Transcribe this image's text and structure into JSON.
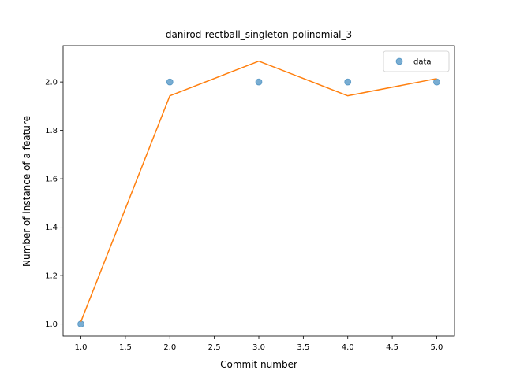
{
  "chart_data": {
    "type": "scatter",
    "title": "danirod-rectball_singleton-polinomial_3",
    "xlabel": "Commit number",
    "ylabel": "Number of instance of a feature",
    "xlim": [
      0.8,
      5.2
    ],
    "ylim": [
      0.95,
      2.15
    ],
    "xticks": [
      "1.0",
      "1.5",
      "2.0",
      "2.5",
      "3.0",
      "3.5",
      "4.0",
      "4.5",
      "5.0"
    ],
    "yticks": [
      "1.0",
      "1.2",
      "1.4",
      "1.6",
      "1.8",
      "2.0"
    ],
    "grid": false,
    "legend_position": "top-right",
    "series": [
      {
        "name": "data",
        "kind": "scatter",
        "color": "#1f77b4",
        "x": [
          1,
          2,
          3,
          4,
          5
        ],
        "y": [
          1,
          2,
          2,
          2,
          2
        ]
      },
      {
        "kind": "line",
        "color": "#ff7f0e",
        "x": [
          1,
          2,
          3,
          4,
          5
        ],
        "y": [
          1.01,
          1.943,
          2.086,
          1.943,
          2.014
        ]
      }
    ]
  }
}
